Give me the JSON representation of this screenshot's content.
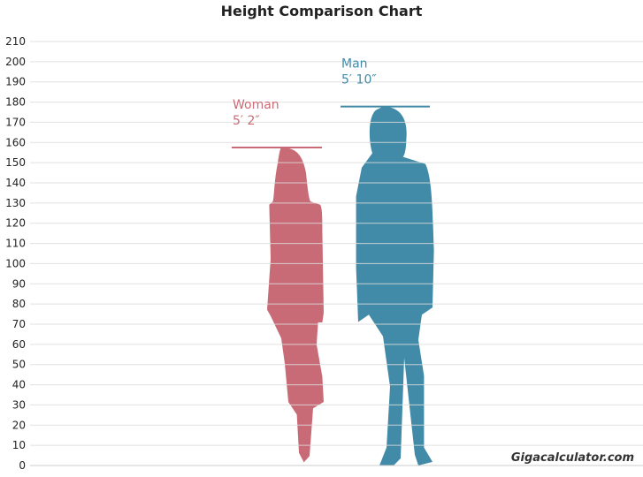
{
  "chart_data": {
    "type": "bar",
    "title": "Height Comparison Chart",
    "ylim": [
      0,
      210
    ],
    "yticks": [
      0,
      10,
      20,
      30,
      40,
      50,
      60,
      70,
      80,
      90,
      100,
      110,
      120,
      130,
      140,
      150,
      160,
      170,
      180,
      190,
      200,
      210
    ],
    "grid": true,
    "series": [
      {
        "name": "Woman",
        "label": "5′ 2″",
        "value": 157.5,
        "color": "#c96b77"
      },
      {
        "name": "Man",
        "label": "5′ 10″",
        "value": 177.8,
        "color": "#428ba8"
      }
    ]
  },
  "watermark": "Gigacalculator.com"
}
